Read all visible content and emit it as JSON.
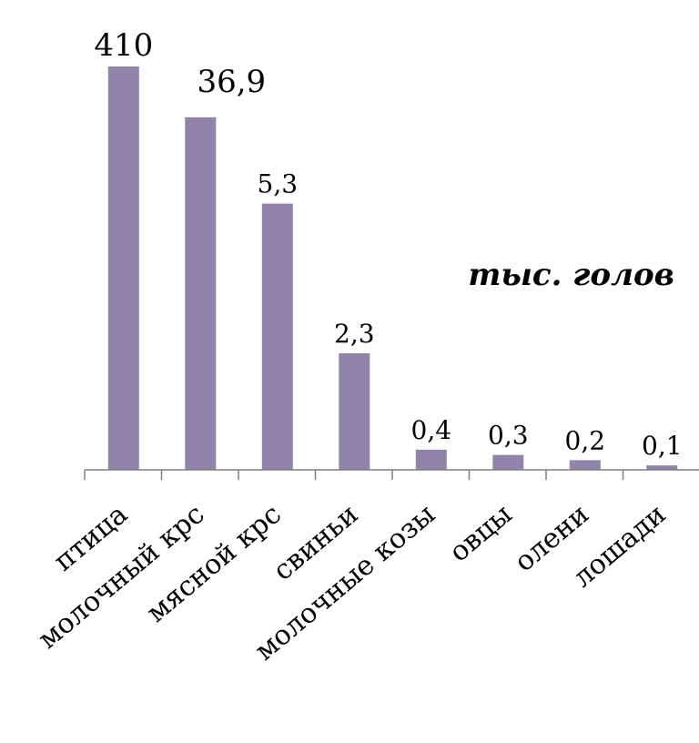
{
  "chart_data": {
    "type": "bar",
    "categories": [
      "птица",
      "молочный крс",
      "мясной крс",
      "свиньи",
      "молочные козы",
      "овцы",
      "олени",
      "лошади"
    ],
    "values": [
      410,
      36.9,
      5.3,
      2.3,
      0.4,
      0.3,
      0.2,
      0.1
    ],
    "value_labels": [
      "410",
      "36,9",
      "5,3",
      "2,3",
      "0,4",
      "0,3",
      "0,2",
      "0,1"
    ],
    "unit_label": "тыс. голов",
    "title": "",
    "xlabel": "",
    "ylabel": "",
    "bar_color": "#9283a8",
    "axis_color": "#7f7f7f",
    "grid": false,
    "legend": false
  }
}
